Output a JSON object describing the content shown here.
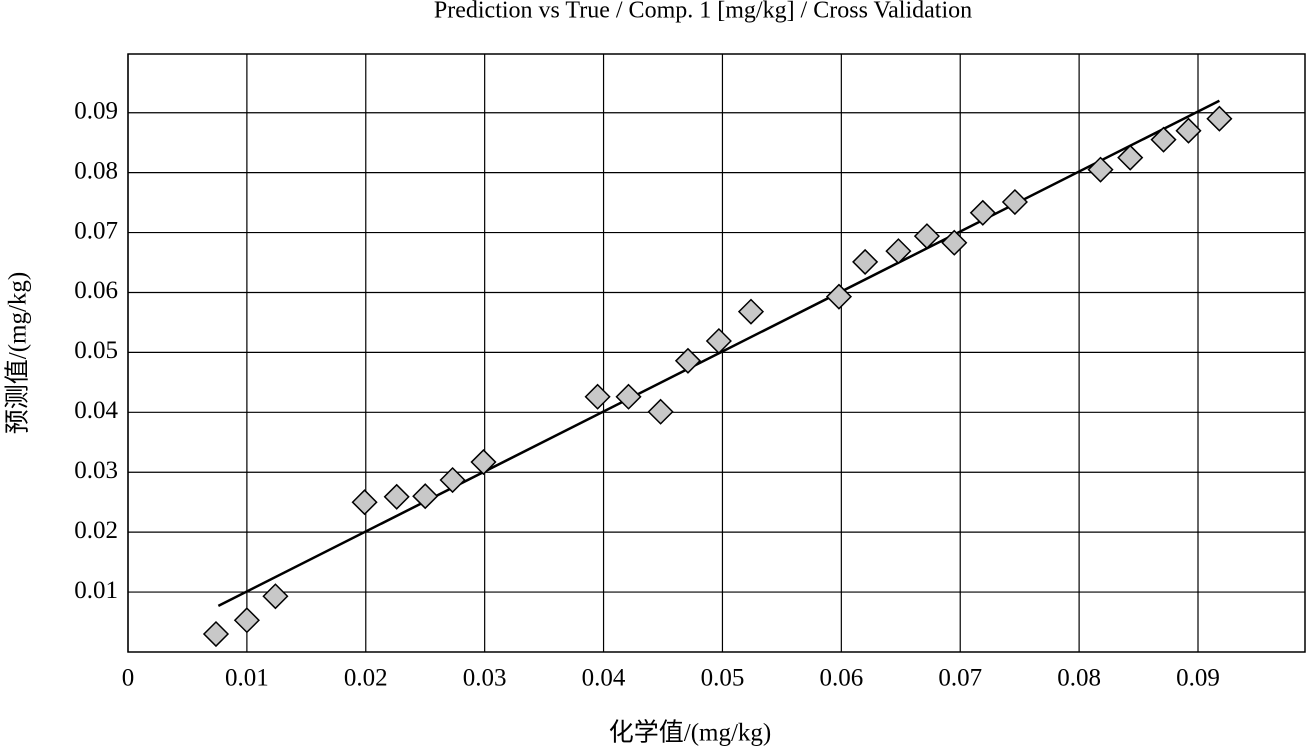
{
  "chart_data": {
    "type": "scatter",
    "title": "Prediction vs True / Comp. 1 [mg/kg] / Cross Validation",
    "x_label": "化学值/(mg/kg)",
    "y_label": "预测值/(mg/kg)",
    "xlim": [
      0,
      0.099
    ],
    "ylim": [
      0,
      0.0998
    ],
    "xticks": [
      0,
      0.01,
      0.02,
      0.03,
      0.04,
      0.05,
      0.06,
      0.07,
      0.08,
      0.09
    ],
    "yticks": [
      0.01,
      0.02,
      0.03,
      0.04,
      0.05,
      0.06,
      0.07,
      0.08,
      0.09
    ],
    "grid": true,
    "series": [
      {
        "color": "#c8c8c8",
        "marker": "diamond",
        "x": [
          0.0074,
          0.01,
          0.0124,
          0.0199,
          0.0226,
          0.025,
          0.0273,
          0.0299,
          0.0395,
          0.0421,
          0.0448,
          0.0471,
          0.0497,
          0.0524,
          0.0598,
          0.062,
          0.0648,
          0.0672,
          0.0695,
          0.0719,
          0.0746,
          0.0818,
          0.0843,
          0.0871,
          0.0892,
          0.0918
        ],
        "values": [
          0.003,
          0.0053,
          0.0093,
          0.025,
          0.0259,
          0.026,
          0.0287,
          0.0317,
          0.0426,
          0.0426,
          0.0401,
          0.0486,
          0.0519,
          0.0568,
          0.0593,
          0.0651,
          0.0669,
          0.0694,
          0.0683,
          0.0733,
          0.0751,
          0.0805,
          0.0825,
          0.0855,
          0.087,
          0.089
        ]
      }
    ],
    "line": {
      "color": "#000000",
      "x": [
        0.0076,
        0.0918
      ],
      "y": [
        0.0077,
        0.092
      ]
    }
  }
}
